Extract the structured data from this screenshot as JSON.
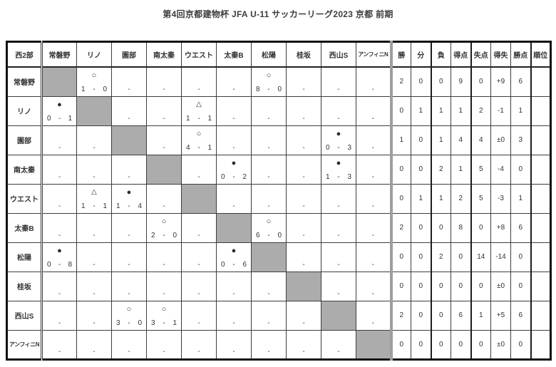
{
  "title": "第4回京都建物杯 JFA U-11 サッカーリーグ2023 京都 前期",
  "corner_label": "西2部",
  "teams": [
    "常磐野",
    "リノ",
    "園部",
    "南太秦",
    "ウエスト",
    "太秦B",
    "松陽",
    "桂坂",
    "西山S",
    "アンフィニN"
  ],
  "stat_headers": [
    "勝",
    "分",
    "負",
    "得点",
    "失点",
    "得失",
    "勝点",
    "順位"
  ],
  "result_symbols": {
    "win": "○",
    "draw": "△",
    "loss": "●",
    "not_played": "-"
  },
  "colors": {
    "diagonal_fill": "#acacac",
    "grid_line": "#3d3d3d",
    "stats_divider": "#9e9e9e"
  },
  "rows": [
    {
      "team": "常磐野",
      "results": [
        "self",
        "W 1-0",
        "-",
        "-",
        "-",
        "-",
        "W 8-0",
        "-",
        "-",
        "-"
      ],
      "stats": [
        "2",
        "0",
        "0",
        "9",
        "0",
        "+9",
        "6",
        ""
      ]
    },
    {
      "team": "リノ",
      "results": [
        "L 0-1",
        "self",
        "-",
        "-",
        "D 1-1",
        "-",
        "-",
        "-",
        "-",
        "-"
      ],
      "stats": [
        "0",
        "1",
        "1",
        "1",
        "2",
        "-1",
        "1",
        ""
      ]
    },
    {
      "team": "園部",
      "results": [
        "-",
        "-",
        "self",
        "-",
        "W 4-1",
        "-",
        "-",
        "-",
        "L 0-3",
        "-"
      ],
      "stats": [
        "1",
        "0",
        "1",
        "4",
        "4",
        "±0",
        "3",
        ""
      ]
    },
    {
      "team": "南太秦",
      "results": [
        "-",
        "-",
        "-",
        "self",
        "-",
        "L 0-2",
        "-",
        "-",
        "L 1-3",
        "-"
      ],
      "stats": [
        "0",
        "0",
        "2",
        "1",
        "5",
        "-4",
        "0",
        ""
      ]
    },
    {
      "team": "ウエスト",
      "results": [
        "-",
        "D 1-1",
        "L 1-4",
        "-",
        "self",
        "-",
        "-",
        "-",
        "-",
        "-"
      ],
      "stats": [
        "0",
        "1",
        "1",
        "2",
        "5",
        "-3",
        "1",
        ""
      ]
    },
    {
      "team": "太秦B",
      "results": [
        "-",
        "-",
        "-",
        "W 2-0",
        "-",
        "self",
        "W 6-0",
        "-",
        "-",
        "-"
      ],
      "stats": [
        "2",
        "0",
        "0",
        "8",
        "0",
        "+8",
        "6",
        ""
      ]
    },
    {
      "team": "松陽",
      "results": [
        "L 0-8",
        "-",
        "-",
        "-",
        "-",
        "L 0-6",
        "self",
        "-",
        "-",
        "-"
      ],
      "stats": [
        "0",
        "0",
        "2",
        "0",
        "14",
        "-14",
        "0",
        ""
      ]
    },
    {
      "team": "桂坂",
      "results": [
        "-",
        "-",
        "-",
        "-",
        "-",
        "-",
        "-",
        "self",
        "-",
        "-"
      ],
      "stats": [
        "0",
        "0",
        "0",
        "0",
        "0",
        "±0",
        "0",
        ""
      ]
    },
    {
      "team": "西山S",
      "results": [
        "-",
        "-",
        "W 3-0",
        "W 3-1",
        "-",
        "-",
        "-",
        "-",
        "self",
        "-"
      ],
      "stats": [
        "2",
        "0",
        "0",
        "6",
        "1",
        "+5",
        "6",
        ""
      ]
    },
    {
      "team": "アンフィニN",
      "results": [
        "-",
        "-",
        "-",
        "-",
        "-",
        "-",
        "-",
        "-",
        "-",
        "self"
      ],
      "stats": [
        "0",
        "0",
        "0",
        "0",
        "0",
        "±0",
        "0",
        ""
      ]
    }
  ]
}
